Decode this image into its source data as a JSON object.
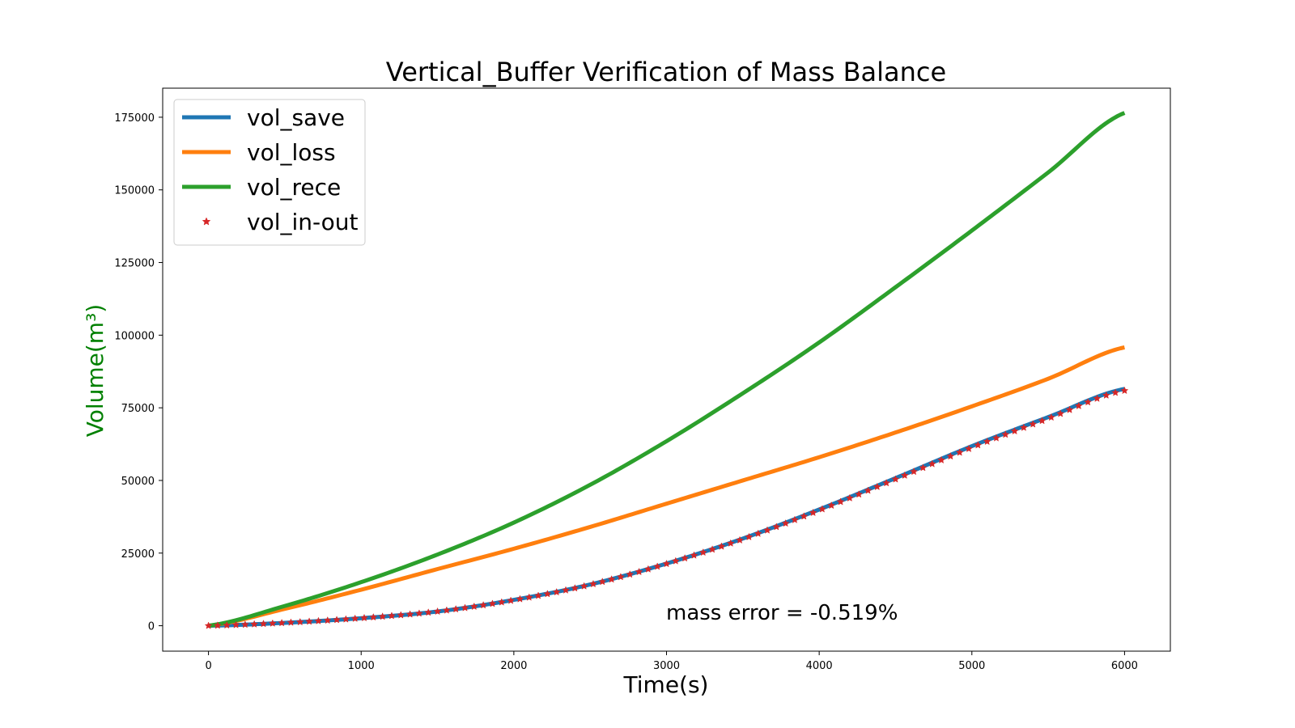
{
  "chart_data": {
    "type": "line",
    "title": "Vertical_Buffer Verification of Mass Balance",
    "xlabel": "Time(s)",
    "ylabel": "Volume(m³)",
    "ylabel_color": "#008000",
    "xlim": [
      -300,
      6300
    ],
    "ylim": [
      -8750,
      185000
    ],
    "xticks": [
      0,
      1000,
      2000,
      3000,
      4000,
      5000,
      6000
    ],
    "xtick_labels": [
      "0",
      "1000",
      "2000",
      "3000",
      "4000",
      "5000",
      "6000"
    ],
    "yticks": [
      0,
      25000,
      50000,
      75000,
      100000,
      125000,
      150000,
      175000
    ],
    "ytick_labels": [
      "0",
      "25000",
      "50000",
      "75000",
      "100000",
      "125000",
      "150000",
      "175000"
    ],
    "grid": false,
    "legend_position": "top-left",
    "annotation": "mass error = -0.519%",
    "x": [
      0,
      500,
      1000,
      1500,
      2000,
      2500,
      3000,
      3500,
      4000,
      4500,
      5000,
      5500,
      6000
    ],
    "series": [
      {
        "name": "vol_save",
        "color": "#1f77b4",
        "style": "line",
        "values": [
          0,
          1000,
          2600,
          4900,
          8900,
          14200,
          21400,
          30000,
          40000,
          50800,
          61800,
          71800,
          81500
        ]
      },
      {
        "name": "vol_loss",
        "color": "#ff7f0e",
        "style": "line",
        "values": [
          0,
          5800,
          12400,
          19500,
          26500,
          34000,
          42000,
          50000,
          58000,
          66500,
          75500,
          85000,
          95800
        ]
      },
      {
        "name": "vol_rece",
        "color": "#2ca02c",
        "style": "line",
        "values": [
          0,
          6800,
          15000,
          24500,
          35500,
          48500,
          63500,
          80000,
          97500,
          116500,
          136000,
          156000,
          176500
        ]
      },
      {
        "name": "vol_in-out",
        "color": "#d62728",
        "style": "markers",
        "marker": "star",
        "values": [
          0,
          1000,
          2600,
          4900,
          8800,
          14100,
          21300,
          29800,
          39700,
          50400,
          61300,
          71300,
          80900
        ]
      }
    ]
  }
}
